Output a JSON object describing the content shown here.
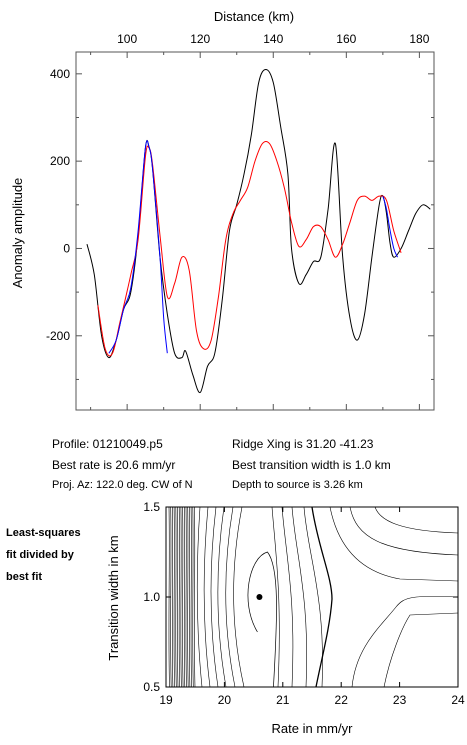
{
  "info": {
    "profile": "Profile: 01210049.p5",
    "ridge": "Ridge Xing is 31.20 -41.23",
    "best_rate": "Best rate is 20.6 mm/yr",
    "best_width": "Best transition width is 1.0 km",
    "proj_az": "Proj. Az: 122.0 deg. CW of N",
    "depth": "Depth to source is   3.26 km"
  },
  "side_note": [
    "Least-squares",
    "fit divided by",
    "best fit"
  ],
  "colors": {
    "observed": "#000000",
    "synthetic": "#ff0000",
    "fit_window": "#0000ff"
  },
  "chart_data": [
    {
      "type": "line",
      "xlabel": "Distance (km)",
      "ylabel": "Anomaly amplitude",
      "xlim": [
        86,
        184
      ],
      "ylim": [
        -370,
        450
      ],
      "xticks": [
        100,
        120,
        140,
        160,
        180
      ],
      "yticks": [
        -200,
        0,
        200,
        400
      ],
      "x_axis_position": "top",
      "grid": false,
      "series": [
        {
          "color": "#000000",
          "points": [
            [
              89,
              10
            ],
            [
              91,
              -60
            ],
            [
              93,
              -200
            ],
            [
              95,
              -250
            ],
            [
              97,
              -210
            ],
            [
              99,
              -140
            ],
            [
              101,
              -100
            ],
            [
              103,
              30
            ],
            [
              105,
              230
            ],
            [
              106,
              232
            ],
            [
              107,
              180
            ],
            [
              109,
              -20
            ],
            [
              111,
              -150
            ],
            [
              113,
              -240
            ],
            [
              115,
              -250
            ],
            [
              116,
              -235
            ],
            [
              118,
              -290
            ],
            [
              120,
              -330
            ],
            [
              122,
              -270
            ],
            [
              124,
              -240
            ],
            [
              126,
              -120
            ],
            [
              128,
              40
            ],
            [
              130,
              100
            ],
            [
              132,
              170
            ],
            [
              134,
              260
            ],
            [
              136,
              380
            ],
            [
              138,
              410
            ],
            [
              140,
              380
            ],
            [
              142,
              280
            ],
            [
              144,
              170
            ],
            [
              145,
              0
            ],
            [
              147,
              -80
            ],
            [
              149,
              -60
            ],
            [
              151,
              -30
            ],
            [
              153,
              -20
            ],
            [
              155,
              90
            ],
            [
              157,
              240
            ],
            [
              159,
              -20
            ],
            [
              161,
              -160
            ],
            [
              163,
              -210
            ],
            [
              165,
              -150
            ],
            [
              167,
              -20
            ],
            [
              169,
              100
            ],
            [
              170,
              120
            ],
            [
              171,
              80
            ],
            [
              172,
              10
            ],
            [
              173,
              -20
            ],
            [
              175,
              0
            ],
            [
              177,
              40
            ],
            [
              179,
              80
            ],
            [
              181,
              100
            ],
            [
              183,
              90
            ]
          ]
        },
        {
          "color": "#ff0000",
          "points": [
            [
              92,
              -130
            ],
            [
              94,
              -230
            ],
            [
              96,
              -240
            ],
            [
              98,
              -170
            ],
            [
              101,
              -60
            ],
            [
              103,
              20
            ],
            [
              105,
              210
            ],
            [
              106,
              230
            ],
            [
              107,
              190
            ],
            [
              109,
              30
            ],
            [
              111,
              -110
            ],
            [
              113,
              -80
            ],
            [
              115,
              -20
            ],
            [
              117,
              -50
            ],
            [
              119,
              -190
            ],
            [
              121,
              -230
            ],
            [
              123,
              -210
            ],
            [
              125,
              -110
            ],
            [
              127,
              20
            ],
            [
              129,
              80
            ],
            [
              131,
              110
            ],
            [
              133,
              140
            ],
            [
              135,
              200
            ],
            [
              137,
              240
            ],
            [
              139,
              240
            ],
            [
              141,
              200
            ],
            [
              143,
              140
            ],
            [
              145,
              60
            ],
            [
              147,
              5
            ],
            [
              149,
              20
            ],
            [
              151,
              50
            ],
            [
              153,
              50
            ],
            [
              155,
              20
            ],
            [
              157,
              -20
            ],
            [
              159,
              10
            ],
            [
              161,
              60
            ],
            [
              163,
              110
            ],
            [
              165,
              120
            ],
            [
              167,
              110
            ],
            [
              169,
              120
            ],
            [
              171,
              110
            ],
            [
              173,
              40
            ],
            [
              175,
              -10
            ]
          ]
        },
        {
          "color": "#0000ff",
          "points": [
            [
              95,
              -240
            ],
            [
              97,
              -210
            ],
            [
              99,
              -140
            ],
            [
              101,
              -90
            ],
            [
              103,
              40
            ],
            [
              105,
              230
            ],
            [
              106,
              232
            ],
            [
              107,
              180
            ],
            [
              109,
              -20
            ],
            [
              110,
              -160
            ],
            [
              111,
              -240
            ],
            [
              170,
              120
            ],
            [
              171,
              90
            ],
            [
              172,
              40
            ],
            [
              173,
              0
            ],
            [
              174,
              -20
            ]
          ]
        }
      ]
    },
    {
      "type": "contour",
      "xlabel": "Rate in mm/yr",
      "ylabel": "Transition width in km",
      "xlim": [
        19,
        24
      ],
      "ylim": [
        0.5,
        1.5
      ],
      "xticks": [
        19,
        20,
        21,
        22,
        23,
        24
      ],
      "yticks": [
        0.5,
        1.0,
        1.5
      ],
      "best_fit": [
        20.6,
        1.0
      ]
    }
  ]
}
